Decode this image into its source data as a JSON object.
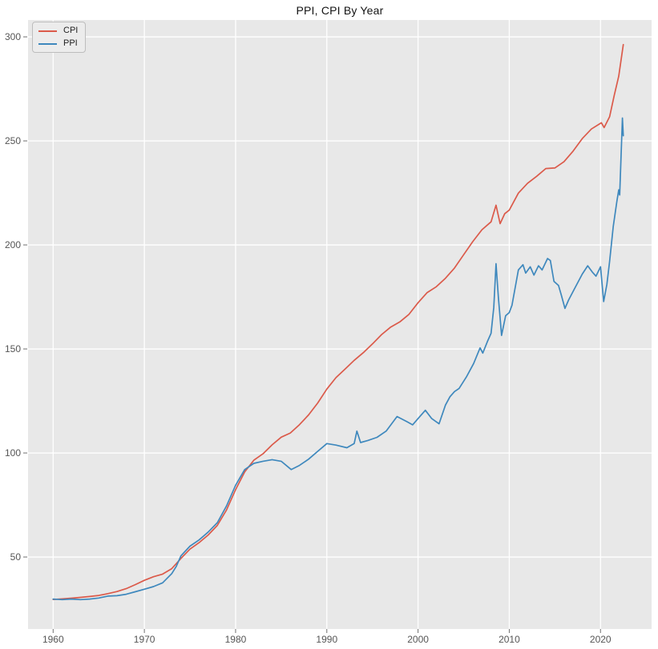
{
  "title": "PPI, CPI By Year",
  "chart_data": {
    "type": "line",
    "title": "PPI, CPI By Year",
    "xlabel": "",
    "ylabel": "",
    "grid": true,
    "legend_position": "upper-left",
    "plot_background": "#e8e8e8",
    "grid_color": "#ffffff",
    "tick_color": "#555555",
    "tick_mark_color": "#6f6f6f",
    "x_ticks": [
      1960,
      1970,
      1980,
      1990,
      2000,
      2010,
      2020
    ],
    "y_ticks": [
      50,
      100,
      150,
      200,
      250,
      300
    ],
    "xlim": [
      1957.25,
      2025.6
    ],
    "ylim": [
      15.4,
      308.1
    ],
    "series": [
      {
        "name": "CPI",
        "color": "#db5a4a",
        "points": [
          [
            1960,
            29.6
          ],
          [
            1961,
            29.9
          ],
          [
            1962,
            30.2
          ],
          [
            1963,
            30.6
          ],
          [
            1964,
            31.0
          ],
          [
            1965,
            31.5
          ],
          [
            1966,
            32.4
          ],
          [
            1967,
            33.4
          ],
          [
            1968,
            34.8
          ],
          [
            1969,
            36.7
          ],
          [
            1970,
            38.8
          ],
          [
            1971,
            40.5
          ],
          [
            1972,
            41.8
          ],
          [
            1973,
            44.4
          ],
          [
            1974,
            49.3
          ],
          [
            1975,
            53.8
          ],
          [
            1976,
            56.9
          ],
          [
            1977,
            60.6
          ],
          [
            1978,
            65.2
          ],
          [
            1979,
            72.6
          ],
          [
            1980,
            82.4
          ],
          [
            1981,
            90.9
          ],
          [
            1982,
            96.5
          ],
          [
            1983,
            99.6
          ],
          [
            1984,
            103.9
          ],
          [
            1985,
            107.6
          ],
          [
            1986,
            109.6
          ],
          [
            1987,
            113.6
          ],
          [
            1988,
            118.3
          ],
          [
            1989,
            124.0
          ],
          [
            1990,
            130.7
          ],
          [
            1991,
            136.2
          ],
          [
            1992,
            140.3
          ],
          [
            1993,
            144.5
          ],
          [
            1994,
            148.2
          ],
          [
            1995,
            152.4
          ],
          [
            1996,
            156.9
          ],
          [
            1997,
            160.5
          ],
          [
            1998,
            163.0
          ],
          [
            1999,
            166.6
          ],
          [
            2000,
            172.2
          ],
          [
            2001,
            177.1
          ],
          [
            2002,
            179.9
          ],
          [
            2003,
            184.0
          ],
          [
            2004,
            188.9
          ],
          [
            2005,
            195.3
          ],
          [
            2006,
            201.6
          ],
          [
            2007,
            207.3
          ],
          [
            2008.0,
            211.1
          ],
          [
            2008.55,
            219.1
          ],
          [
            2009.0,
            210.2
          ],
          [
            2009.5,
            215.0
          ],
          [
            2010,
            216.7
          ],
          [
            2011,
            224.9
          ],
          [
            2012,
            229.6
          ],
          [
            2013,
            233.0
          ],
          [
            2014,
            236.7
          ],
          [
            2015,
            237.0
          ],
          [
            2016,
            240.0
          ],
          [
            2017,
            245.1
          ],
          [
            2018,
            251.1
          ],
          [
            2019,
            255.7
          ],
          [
            2020.1,
            258.7
          ],
          [
            2020.4,
            256.4
          ],
          [
            2021.0,
            261.6
          ],
          [
            2021.5,
            271.7
          ],
          [
            2022.0,
            281.1
          ],
          [
            2022.5,
            296.3
          ]
        ]
      },
      {
        "name": "PPI",
        "color": "#3e88bd",
        "points": [
          [
            1960,
            29.8
          ],
          [
            1961,
            29.5
          ],
          [
            1962,
            29.8
          ],
          [
            1963,
            29.5
          ],
          [
            1964,
            29.8
          ],
          [
            1965,
            30.3
          ],
          [
            1966,
            31.2
          ],
          [
            1967,
            31.4
          ],
          [
            1968,
            32.1
          ],
          [
            1969,
            33.3
          ],
          [
            1970,
            34.5
          ],
          [
            1971,
            35.8
          ],
          [
            1972,
            37.6
          ],
          [
            1973,
            42.0
          ],
          [
            1973.5,
            45.5
          ],
          [
            1974,
            50.5
          ],
          [
            1975,
            55.2
          ],
          [
            1976,
            58.2
          ],
          [
            1977,
            62.0
          ],
          [
            1978,
            66.5
          ],
          [
            1979,
            74.5
          ],
          [
            1980,
            84.5
          ],
          [
            1981,
            92.0
          ],
          [
            1982,
            95.0
          ],
          [
            1983,
            96.0
          ],
          [
            1984,
            96.8
          ],
          [
            1985,
            96.0
          ],
          [
            1986.1,
            92.0
          ],
          [
            1987,
            94.0
          ],
          [
            1988,
            97.0
          ],
          [
            1989,
            100.8
          ],
          [
            1990,
            104.5
          ],
          [
            1991,
            103.8
          ],
          [
            1992.2,
            102.5
          ],
          [
            1993.0,
            104.5
          ],
          [
            1993.3,
            110.5
          ],
          [
            1993.7,
            105.0
          ],
          [
            1994.5,
            106.0
          ],
          [
            1995.5,
            107.5
          ],
          [
            1996.5,
            110.5
          ],
          [
            1997.7,
            117.5
          ],
          [
            1998.8,
            115.0
          ],
          [
            1999.4,
            113.5
          ],
          [
            2000.0,
            116.5
          ],
          [
            2000.8,
            120.5
          ],
          [
            2001.5,
            116.5
          ],
          [
            2002.3,
            114.0
          ],
          [
            2003.0,
            123.0
          ],
          [
            2003.5,
            127.0
          ],
          [
            2004.0,
            129.5
          ],
          [
            2004.5,
            131.0
          ],
          [
            2005.3,
            136.5
          ],
          [
            2006.1,
            143.0
          ],
          [
            2006.8,
            150.5
          ],
          [
            2007.1,
            148.0
          ],
          [
            2007.6,
            153.5
          ],
          [
            2008.0,
            157.5
          ],
          [
            2008.3,
            170.0
          ],
          [
            2008.55,
            191.0
          ],
          [
            2008.8,
            175.0
          ],
          [
            2009.15,
            156.5
          ],
          [
            2009.6,
            166.0
          ],
          [
            2010.0,
            167.5
          ],
          [
            2010.3,
            171.0
          ],
          [
            2011.0,
            188.0
          ],
          [
            2011.5,
            190.5
          ],
          [
            2011.8,
            186.5
          ],
          [
            2012.3,
            189.5
          ],
          [
            2012.7,
            185.5
          ],
          [
            2013.2,
            190.0
          ],
          [
            2013.6,
            188.0
          ],
          [
            2014.2,
            193.5
          ],
          [
            2014.5,
            192.5
          ],
          [
            2014.9,
            182.5
          ],
          [
            2015.4,
            180.5
          ],
          [
            2015.7,
            176.0
          ],
          [
            2016.1,
            169.5
          ],
          [
            2016.5,
            173.5
          ],
          [
            2017.1,
            178.5
          ],
          [
            2018.0,
            186.0
          ],
          [
            2018.6,
            190.0
          ],
          [
            2019.1,
            187.0
          ],
          [
            2019.5,
            185.0
          ],
          [
            2020.0,
            189.5
          ],
          [
            2020.35,
            172.8
          ],
          [
            2020.7,
            181.0
          ],
          [
            2021.0,
            192.0
          ],
          [
            2021.4,
            209.0
          ],
          [
            2021.8,
            221.0
          ],
          [
            2022.0,
            226.5
          ],
          [
            2022.1,
            224.0
          ],
          [
            2022.4,
            261.0
          ],
          [
            2022.5,
            252.5
          ]
        ]
      }
    ]
  },
  "legend": {
    "items": [
      {
        "label": "CPI"
      },
      {
        "label": "PPI"
      }
    ]
  }
}
